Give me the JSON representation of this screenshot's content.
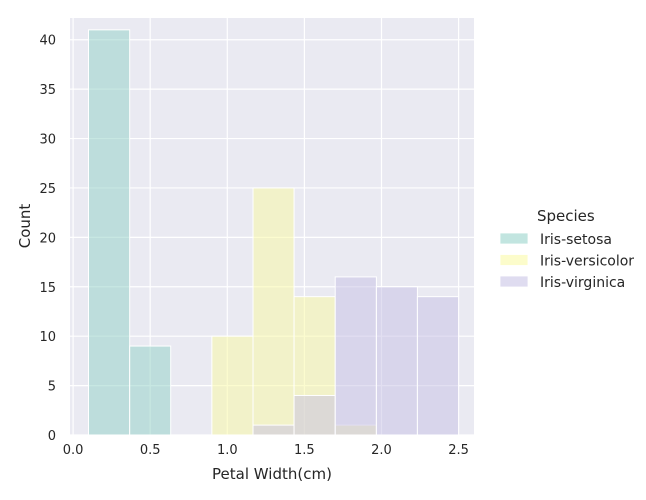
{
  "chart_data": {
    "type": "histogram",
    "title": "",
    "xlabel": "Petal Width(cm)",
    "ylabel": "Count",
    "xlim": [
      -0.02,
      2.6
    ],
    "ylim": [
      0,
      42.2
    ],
    "xticks": [
      "0.0",
      "0.5",
      "1.0",
      "1.5",
      "2.0",
      "2.5"
    ],
    "yticks": [
      "0",
      "5",
      "10",
      "15",
      "20",
      "25",
      "30",
      "35",
      "40"
    ],
    "bin_edges": [
      0.1,
      0.367,
      0.633,
      0.9,
      1.167,
      1.433,
      1.7,
      1.967,
      2.233,
      2.5
    ],
    "grid": true,
    "legend": {
      "title": "Species",
      "placement": "right",
      "entries": [
        "Iris-setosa",
        "Iris-versicolor",
        "Iris-virginica"
      ]
    },
    "series": [
      {
        "name": "Iris-setosa",
        "color": "#8fcfc6",
        "values": [
          41,
          9,
          0,
          0,
          0,
          0,
          0,
          0,
          0
        ]
      },
      {
        "name": "Iris-versicolor",
        "color": "#fafaa0",
        "values": [
          0,
          0,
          0,
          10,
          25,
          14,
          1,
          0,
          0
        ]
      },
      {
        "name": "Iris-virginica",
        "color": "#c5c0e3",
        "values": [
          0,
          0,
          0,
          0,
          1,
          4,
          16,
          15,
          14
        ]
      }
    ]
  }
}
